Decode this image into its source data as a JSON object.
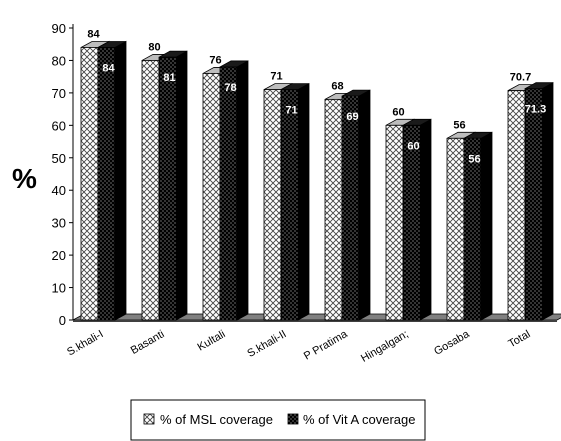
{
  "chart_data": {
    "type": "bar",
    "ylabel": "%",
    "ylim": [
      0,
      90
    ],
    "ytick_step": 10,
    "grid": false,
    "legend_placement": "bottom",
    "categories": [
      "S.khali-I",
      "Basanti",
      "Kultali",
      "S.khali-II",
      "P Pratima",
      "Hingalganj",
      "Gosaba",
      "Total"
    ],
    "category_labels_visible": [
      "S.khali-I",
      "Basanti",
      "Kultali",
      "S.khali-II",
      "P Pratima",
      "Hingalgan;",
      "Gosaba",
      "Total"
    ],
    "series": [
      {
        "name": "% of MSL coverage",
        "pattern": "crosshatch-white",
        "values": [
          84,
          80,
          76,
          71,
          68,
          60,
          56,
          70.7
        ],
        "labels": [
          "84",
          "80",
          "76",
          "71",
          "68",
          "60",
          "56",
          "70.7"
        ]
      },
      {
        "name": "% of Vit A coverage",
        "pattern": "dotted-black",
        "values": [
          84,
          81,
          78,
          71,
          69,
          60,
          56,
          71.3
        ],
        "labels": [
          "84",
          "81",
          "78",
          "71",
          "69",
          "60",
          "56",
          "71.3"
        ]
      }
    ],
    "colors": {
      "floor": "#808080",
      "bar_dark": "#000000",
      "bar_light": "#ffffff"
    }
  }
}
